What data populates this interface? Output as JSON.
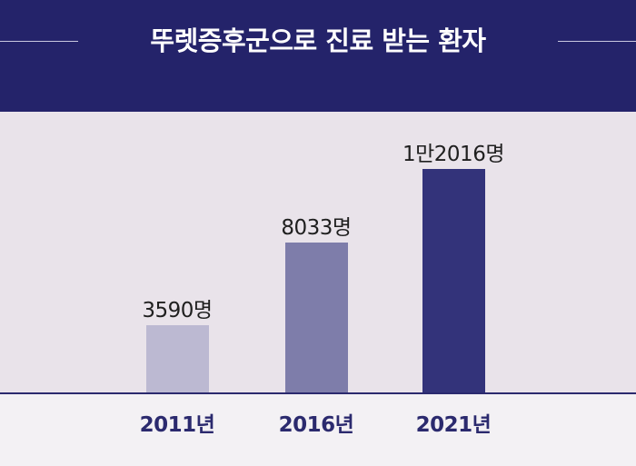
{
  "header": {
    "title": "뚜렛증후군으로 진료 받는 환자"
  },
  "colors": {
    "header_bg": "#24236a",
    "plot_bg": "#e9e3ea",
    "axis_line": "#2b2a6e",
    "bar_2011": "#bcb9d2",
    "bar_2016": "#7e7daa",
    "bar_2021": "#33337a"
  },
  "chart_data": {
    "type": "bar",
    "title": "뚜렛증후군으로 진료 받는 환자",
    "categories": [
      "2011년",
      "2016년",
      "2021년"
    ],
    "values": [
      3590,
      8033,
      12016
    ],
    "value_labels": [
      "3590명",
      "8033명",
      "1만2016명"
    ],
    "unit": "명",
    "ylim": [
      0,
      14400
    ],
    "grid": false,
    "legend": "none"
  }
}
